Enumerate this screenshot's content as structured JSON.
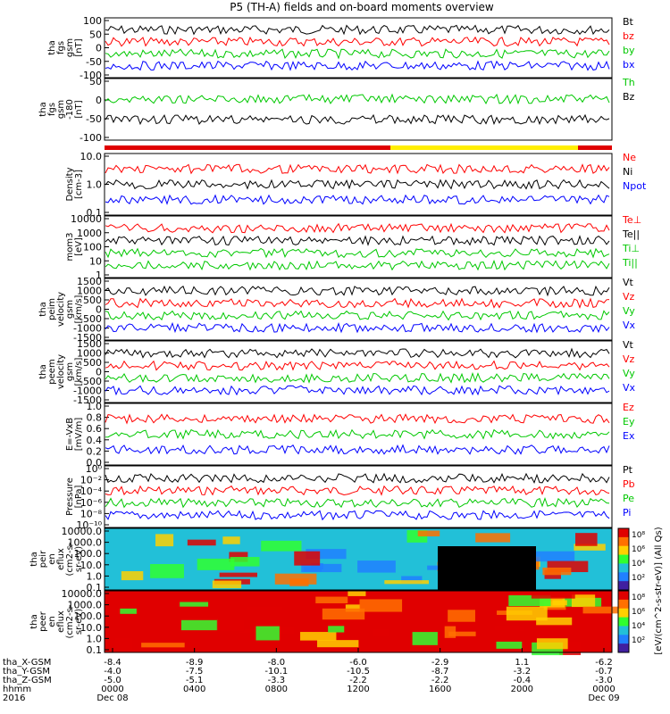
{
  "chart_data": {
    "type": "line",
    "title": "P5 (TH-A) fields and on-board moments overview",
    "x_ticks": {
      "tha_X_GSM": [
        "-8.4",
        "-8.9",
        "-8.0",
        "-6.0",
        "-2.9",
        "1.1",
        "-6.2"
      ],
      "tha_Y_GSM": [
        "-4.0",
        "-7.5",
        "-10.1",
        "-10.5",
        "-8.7",
        "-3.2",
        "-0.7"
      ],
      "tha_Z_GSM": [
        "-5.0",
        "-5.1",
        "-3.3",
        "-2.2",
        "-2.2",
        "-0.4",
        "-3.0"
      ],
      "hhmm": [
        "0000",
        "0400",
        "0800",
        "1200",
        "1600",
        "2000",
        "0000"
      ]
    },
    "x_row_labels": [
      "tha_X-GSM",
      "tha_Y-GSM",
      "tha_Z-GSM",
      "hhmm",
      "2016"
    ],
    "date_labels": [
      "Dec 08",
      "Dec 09"
    ],
    "panels": [
      {
        "id": "fgs-gsm",
        "ylabel": [
          "tha",
          "fgs",
          "gsm",
          "[nT]"
        ],
        "ticks": [
          "100",
          "50",
          "0",
          "-50",
          "-100"
        ],
        "series": [
          {
            "name": "Bt",
            "color": "#000000"
          },
          {
            "name": "bz",
            "color": "#ff0000"
          },
          {
            "name": "by",
            "color": "#00c800"
          },
          {
            "name": "bx",
            "color": "#0000ff"
          }
        ]
      },
      {
        "id": "fgs-gsm-elev",
        "ylabel": [
          "tha",
          "fgs",
          "gsm",
          "-180",
          "[nT]"
        ],
        "ticks": [
          "50",
          "0",
          "-50",
          "-100"
        ],
        "series": [
          {
            "name": "Th",
            "color": "#00c800"
          },
          {
            "name": "Bz",
            "color": "#000000"
          }
        ]
      },
      {
        "id": "density",
        "ylabel": [
          "Density",
          "[cm-3]"
        ],
        "ticks": [
          "10.0",
          "1.0",
          "0.1"
        ],
        "series": [
          {
            "name": "Ne",
            "color": "#ff0000"
          },
          {
            "name": "Ni",
            "color": "#000000"
          },
          {
            "name": "Npot",
            "color": "#0000ff"
          }
        ]
      },
      {
        "id": "temperature",
        "ylabel": [
          "mom3",
          "[eV]"
        ],
        "ticks": [
          "10000",
          "1000",
          "100",
          "10",
          "1"
        ],
        "series": [
          {
            "name": "Te⊥",
            "color": "#ff0000"
          },
          {
            "name": "Te||",
            "color": "#000000"
          },
          {
            "name": "Ti⊥",
            "color": "#00c800"
          },
          {
            "name": "Ti||",
            "color": "#00c800"
          }
        ]
      },
      {
        "id": "peim-velocity",
        "ylabel": [
          "tha",
          "peim",
          "velocity",
          "gsm",
          "[km/s]"
        ],
        "ticks": [
          "1500",
          "1000",
          "500",
          "0",
          "-500",
          "-1000",
          "-1500"
        ],
        "series": [
          {
            "name": "Vt",
            "color": "#000000"
          },
          {
            "name": "Vz",
            "color": "#ff0000"
          },
          {
            "name": "Vy",
            "color": "#00c800"
          },
          {
            "name": "Vx",
            "color": "#0000ff"
          }
        ]
      },
      {
        "id": "peem-velocity",
        "ylabel": [
          "tha",
          "peem",
          "velocity",
          "gsm",
          "[km/s]"
        ],
        "ticks": [
          "1500",
          "1000",
          "500",
          "0",
          "-500",
          "-1000",
          "-1500"
        ],
        "series": [
          {
            "name": "Vt",
            "color": "#000000"
          },
          {
            "name": "Vz",
            "color": "#ff0000"
          },
          {
            "name": "Vy",
            "color": "#00c800"
          },
          {
            "name": "Vx",
            "color": "#0000ff"
          }
        ]
      },
      {
        "id": "efield",
        "ylabel": [
          "E=-VxB",
          "[mV/m]"
        ],
        "ticks": [
          "1.0",
          "0.8",
          "0.6",
          "0.4",
          "0.2",
          "0.0"
        ],
        "series": [
          {
            "name": "Ez",
            "color": "#ff0000"
          },
          {
            "name": "Ey",
            "color": "#00c800"
          },
          {
            "name": "Ex",
            "color": "#0000ff"
          }
        ]
      },
      {
        "id": "pressure",
        "ylabel": [
          "Pressure",
          "[nPa]"
        ],
        "ticks": [
          "10⁰",
          "10⁻²",
          "10⁻⁴",
          "10⁻⁶",
          "10⁻⁸",
          "10⁻¹⁰"
        ],
        "series": [
          {
            "name": "Pt",
            "color": "#000000"
          },
          {
            "name": "Pb",
            "color": "#ff0000"
          },
          {
            "name": "Pe",
            "color": "#00c800"
          },
          {
            "name": "Pi",
            "color": "#0000ff"
          }
        ]
      },
      {
        "id": "peir-spec",
        "ylabel": [
          "tha",
          "peir",
          "en",
          "eflux",
          "(cm2-s-",
          "sr-eV)"
        ],
        "ticks": [
          "10000.0",
          "1000.0",
          "100.0",
          "10.0",
          "1.0",
          "0.1"
        ]
      },
      {
        "id": "peer-spec",
        "ylabel": [
          "tha",
          "peer",
          "en",
          "eflux",
          "(cm2-s-",
          "sr-eV)"
        ],
        "ticks": [
          "10000.0",
          "1000.0",
          "100.0",
          "10.0",
          "1.0",
          "0.1"
        ]
      }
    ],
    "colorbar": {
      "label": "[eV/(cm^2-s-str-eV)] (All Qs)",
      "ticks": [
        "10⁸",
        "10⁶",
        "10⁴",
        "10²"
      ]
    }
  }
}
